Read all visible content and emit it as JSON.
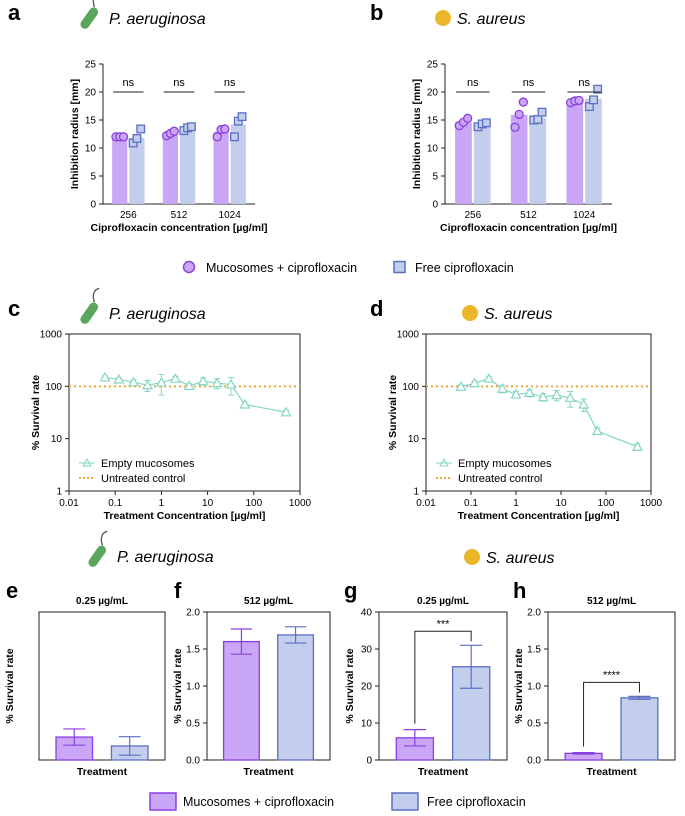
{
  "colors": {
    "purple_fill": "#c9a6f6",
    "purple_stroke": "#8c3fe0",
    "blue_fill": "#c3cdec",
    "blue_stroke": "#5b6fc4",
    "teal": "#86d6c2",
    "orange": "#efa93a",
    "bacteria_green": "#5aa65c",
    "coccus_yellow": "#ebb62a"
  },
  "legend_top": {
    "items": [
      {
        "label": "Mucosomes + ciprofloxacin",
        "color": "purple",
        "marker": "circle"
      },
      {
        "label": "Free ciprofloxacin",
        "color": "blue",
        "marker": "square"
      }
    ]
  },
  "legend_bottom": {
    "items": [
      {
        "label": "Mucosomes + ciprofloxacin",
        "color": "purple"
      },
      {
        "label": "Free ciprofloxacin",
        "color": "blue"
      }
    ]
  },
  "section_labels": {
    "row3_left_species": "P. aeruginosa",
    "row3_right_species": "S. aureus"
  },
  "chart_data": [
    {
      "id": "a",
      "letter": "a",
      "species": "P. aeruginosa",
      "icon": "rod-bacterium-icon",
      "type": "bar",
      "categories": [
        "256",
        "512",
        "1024"
      ],
      "xlabel": "Ciprofloxacin concentration [µg/ml]",
      "ylabel": "Inhibition radius [mm]",
      "ylim": [
        0,
        25
      ],
      "yticks": [
        "0",
        "5",
        "10",
        "15",
        "20",
        "25"
      ],
      "series": [
        {
          "name": "Mucosomes + ciprofloxacin",
          "color": "purple",
          "marker": "circle",
          "values": [
            12.0,
            12.6,
            12.9
          ],
          "points": [
            [
              12,
              12,
              12
            ],
            [
              12.2,
              12.6,
              13.0
            ],
            [
              12.0,
              13.3,
              13.4
            ]
          ]
        },
        {
          "name": "Free ciprofloxacin",
          "color": "blue",
          "marker": "square",
          "values": [
            11.8,
            13.5,
            14.2
          ],
          "points": [
            [
              10.9,
              11.7,
              13.4
            ],
            [
              13.1,
              13.6,
              13.8
            ],
            [
              12.0,
              14.8,
              15.6
            ]
          ]
        }
      ],
      "annotations": [
        "ns",
        "ns",
        "ns"
      ]
    },
    {
      "id": "b",
      "letter": "b",
      "species": "S. aureus",
      "icon": "coccus-icon",
      "type": "bar",
      "categories": [
        "256",
        "512",
        "1024"
      ],
      "xlabel": "Ciprofloxacin concentration [µg/ml]",
      "ylabel": "Inhibition radius [mm]",
      "ylim": [
        0,
        25
      ],
      "yticks": [
        "0",
        "5",
        "10",
        "15",
        "20",
        "25"
      ],
      "series": [
        {
          "name": "Mucosomes + ciprofloxacin",
          "color": "purple",
          "marker": "circle",
          "values": [
            14.6,
            15.9,
            18.4
          ],
          "points": [
            [
              14.0,
              14.6,
              15.3
            ],
            [
              13.7,
              16.0,
              18.2
            ],
            [
              18.1,
              18.4,
              18.5
            ]
          ]
        },
        {
          "name": "Free ciprofloxacin",
          "color": "blue",
          "marker": "square",
          "values": [
            14.2,
            15.4,
            18.8
          ],
          "points": [
            [
              13.8,
              14.3,
              14.5
            ],
            [
              15.0,
              15.1,
              16.4
            ],
            [
              17.4,
              18.6,
              20.5
            ]
          ]
        }
      ],
      "annotations": [
        "ns",
        "ns",
        "ns"
      ]
    },
    {
      "id": "c",
      "letter": "c",
      "species": "P. aeruginosa",
      "icon": "rod-bacterium-icon",
      "type": "line",
      "xscale": "log",
      "yscale": "log",
      "xlim": [
        0.01,
        1000
      ],
      "ylim": [
        1,
        1000
      ],
      "xticks": [
        "0.01",
        "0.1",
        "1",
        "10",
        "100",
        "1000"
      ],
      "yticks": [
        "1",
        "10",
        "100",
        "1000"
      ],
      "xlabel": "Treatment Concentration [µg/ml]",
      "ylabel": "% Survival rate",
      "series": [
        {
          "name": "Empty mucosomes",
          "color": "teal",
          "marker": "triangle",
          "x": [
            0.06,
            0.12,
            0.25,
            0.5,
            1,
            2,
            4,
            8,
            16,
            32,
            64,
            500
          ],
          "y": [
            148,
            135,
            120,
            105,
            118,
            140,
            102,
            125,
            115,
            108,
            45,
            32
          ],
          "err": [
            10,
            12,
            15,
            25,
            50,
            15,
            10,
            20,
            25,
            40,
            5,
            3
          ]
        },
        {
          "name": "Untreated control",
          "color": "orange",
          "style": "dotted",
          "y_const": 100
        }
      ],
      "legend": [
        "Empty mucosomes",
        "Untreated control"
      ]
    },
    {
      "id": "d",
      "letter": "d",
      "species": "S. aureus",
      "icon": "coccus-icon",
      "type": "line",
      "xscale": "log",
      "yscale": "log",
      "xlim": [
        0.01,
        1000
      ],
      "ylim": [
        1,
        1000
      ],
      "xticks": [
        "0.01",
        "0.1",
        "1",
        "10",
        "100",
        "1000"
      ],
      "yticks": [
        "1",
        "10",
        "100",
        "1000"
      ],
      "xlabel": "Treatment Concentration [µg/ml]",
      "ylabel": "% Survival rate",
      "series": [
        {
          "name": "Empty mucosomes",
          "color": "teal",
          "marker": "triangle",
          "x": [
            0.06,
            0.12,
            0.25,
            0.5,
            1,
            2,
            4,
            8,
            16,
            32,
            64,
            500
          ],
          "y": [
            98,
            115,
            140,
            90,
            70,
            75,
            62,
            68,
            60,
            45,
            14,
            7
          ],
          "err": [
            8,
            10,
            15,
            15,
            10,
            12,
            10,
            15,
            20,
            12,
            2,
            1
          ]
        },
        {
          "name": "Untreated control",
          "color": "orange",
          "style": "dotted",
          "y_const": 100
        }
      ],
      "legend": [
        "Empty mucosomes",
        "Untreated control"
      ]
    },
    {
      "id": "e",
      "letter": "e",
      "type": "bar",
      "title": "0.25 µg/mL",
      "xlabel": "Treatment",
      "ylabel": "% Survival rate",
      "ylim": [
        0,
        40
      ],
      "yticks": [],
      "categories": [
        "Mucosomes + ciprofloxacin",
        "Free ciprofloxacin"
      ],
      "values": [
        6.2,
        3.8
      ],
      "err": [
        2.2,
        2.5
      ],
      "colors": [
        "purple",
        "blue"
      ],
      "significance": ""
    },
    {
      "id": "f",
      "letter": "f",
      "type": "bar",
      "title": "512 µg/mL",
      "xlabel": "Treatment",
      "ylabel": "% Survival rate",
      "ylim": [
        0,
        2.0
      ],
      "yticks": [
        "0.0",
        "0.5",
        "1.0",
        "1.5",
        "2.0"
      ],
      "categories": [
        "Mucosomes + ciprofloxacin",
        "Free ciprofloxacin"
      ],
      "values": [
        1.6,
        1.69
      ],
      "err": [
        0.17,
        0.11
      ],
      "colors": [
        "purple",
        "blue"
      ],
      "significance": ""
    },
    {
      "id": "g",
      "letter": "g",
      "type": "bar",
      "title": "0.25 µg/mL",
      "xlabel": "Treatment",
      "ylabel": "% Survival rate",
      "ylim": [
        0,
        40
      ],
      "yticks": [
        "0",
        "10",
        "20",
        "30",
        "40"
      ],
      "categories": [
        "Mucosomes + ciprofloxacin",
        "Free ciprofloxacin"
      ],
      "values": [
        6.0,
        25.2
      ],
      "err": [
        2.2,
        5.8
      ],
      "colors": [
        "purple",
        "blue"
      ],
      "significance": "***"
    },
    {
      "id": "h",
      "letter": "h",
      "type": "bar",
      "title": "512 µg/mL",
      "xlabel": "Treatment",
      "ylabel": "% Survival rate",
      "ylim": [
        0,
        2.0
      ],
      "yticks": [
        "0.0",
        "0.5",
        "1.0",
        "1.5",
        "2.0"
      ],
      "categories": [
        "Mucosomes + ciprofloxacin",
        "Free ciprofloxacin"
      ],
      "values": [
        0.09,
        0.84
      ],
      "err": [
        0.01,
        0.02
      ],
      "colors": [
        "purple",
        "blue"
      ],
      "significance": "****"
    }
  ]
}
